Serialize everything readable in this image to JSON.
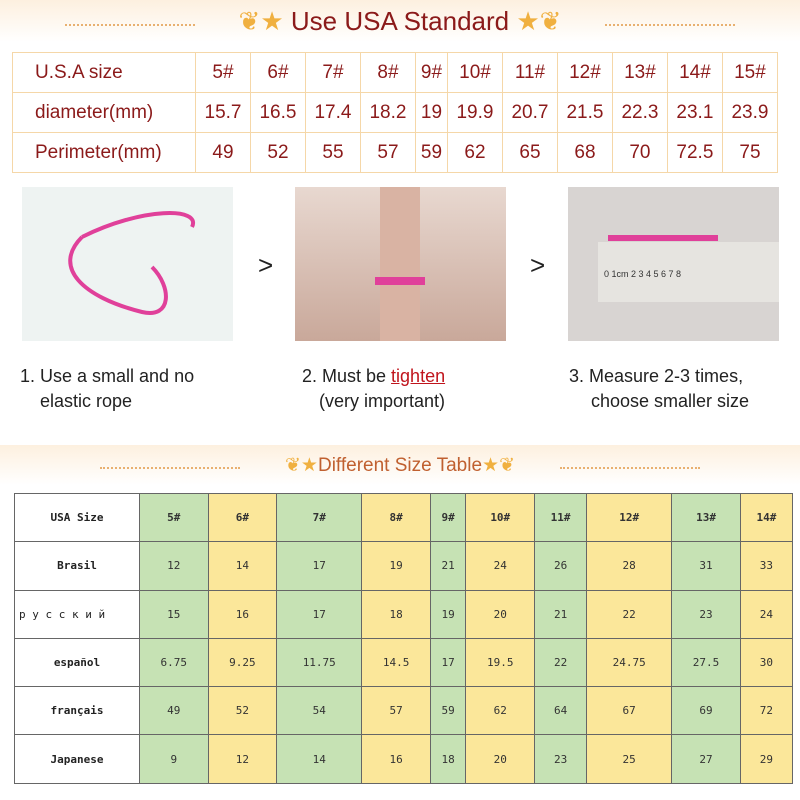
{
  "usa_standard": {
    "title": "Use USA Standard",
    "rows": [
      {
        "label": "U.S.A size",
        "values": [
          "5#",
          "6#",
          "7#",
          "8#",
          "9#",
          "10#",
          "11#",
          "12#",
          "13#",
          "14#",
          "15#"
        ]
      },
      {
        "label": "diameter(mm)",
        "values": [
          "15.7",
          "16.5",
          "17.4",
          "18.2",
          "19",
          "19.9",
          "20.7",
          "21.5",
          "22.3",
          "23.1",
          "23.9"
        ]
      },
      {
        "label": "Perimeter(mm)",
        "values": [
          "49",
          "52",
          "55",
          "57",
          "59",
          "62",
          "65",
          "68",
          "70",
          "72.5",
          "75"
        ]
      }
    ]
  },
  "steps": [
    {
      "line1": "1. Use a small and no",
      "line2": "elastic rope"
    },
    {
      "line1_pre": "2. Must be ",
      "line1_highlight": "tighten",
      "line2": "(very  important)"
    },
    {
      "line1": "3. Measure 2-3 times,",
      "line2": "choose smaller size"
    }
  ],
  "arrow": ">",
  "ruler_labels": "0  1cm 2  3  4  5  6  7  8",
  "size_table": {
    "title": "Different Size Table",
    "rows": [
      {
        "label": "USA Size",
        "values": [
          "5#",
          "6#",
          "7#",
          "8#",
          "9#",
          "10#",
          "11#",
          "12#",
          "13#",
          "14#"
        ]
      },
      {
        "label": "Brasil",
        "values": [
          "12",
          "14",
          "17",
          "19",
          "21",
          "24",
          "26",
          "28",
          "31",
          "33"
        ]
      },
      {
        "label": "р у с с к и й",
        "values": [
          "15",
          "16",
          "17",
          "18",
          "19",
          "20",
          "21",
          "22",
          "23",
          "24"
        ]
      },
      {
        "label": "español",
        "values": [
          "6.75",
          "9.25",
          "11.75",
          "14.5",
          "17",
          "19.5",
          "22",
          "24.75",
          "27.5",
          "30"
        ]
      },
      {
        "label": "français",
        "values": [
          "49",
          "52",
          "54",
          "57",
          "59",
          "62",
          "64",
          "67",
          "69",
          "72"
        ]
      },
      {
        "label": "Japanese",
        "values": [
          "9",
          "12",
          "14",
          "16",
          "18",
          "20",
          "23",
          "25",
          "27",
          "29"
        ]
      }
    ]
  },
  "colors": {
    "title": "#8b1a1a",
    "green": "#c6e2b4",
    "yellow": "#fbe79a",
    "highlight": "#c0141c"
  }
}
